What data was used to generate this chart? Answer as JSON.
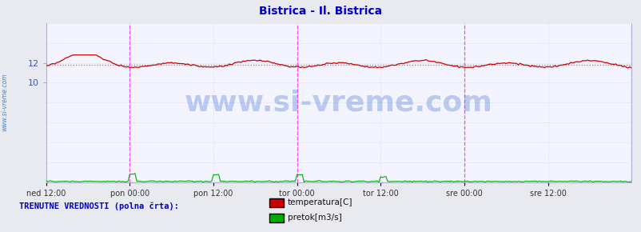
{
  "title": "Bistrica - Il. Bistrica",
  "title_color": "#0000cc",
  "title_fontsize": 10,
  "bg_color": "#e8eaf0",
  "plot_bg_color": "#f4f4ff",
  "yticks": [
    10,
    12
  ],
  "ylim": [
    0,
    16
  ],
  "xlim": [
    0,
    336
  ],
  "xtick_positions": [
    0,
    48,
    96,
    144,
    192,
    240,
    288,
    336
  ],
  "xtick_labels": [
    "ned 12:00",
    "pon 00:00",
    "pon 12:00",
    "tor 00:00",
    "tor 12:00",
    "sre 00:00",
    "sre 12:00",
    ""
  ],
  "grid_color": "#d8d8e8",
  "grid_h_positions": [
    2,
    4,
    6,
    8,
    10,
    12,
    14,
    16
  ],
  "vline_positions": [
    48,
    144,
    240,
    336
  ],
  "vline_color": "#ff44ff",
  "temp_color": "#cc0000",
  "flow_color": "#00aa00",
  "dashed_line_color": "#cc6666",
  "dashed_line_value": 11.85,
  "watermark": "www.si-vreme.com",
  "watermark_color": "#3366cc",
  "watermark_fontsize": 26,
  "side_label": "www.si-vreme.com",
  "side_label_color": "#4488cc",
  "legend_title": "TRENUTNE VREDNOSTI (polna črta):",
  "legend_title_color": "#0000bb",
  "legend_items": [
    "temperatura[C]",
    "pretok[m3/s]"
  ],
  "legend_colors": [
    "#cc0000",
    "#00aa00"
  ],
  "n_points": 337
}
